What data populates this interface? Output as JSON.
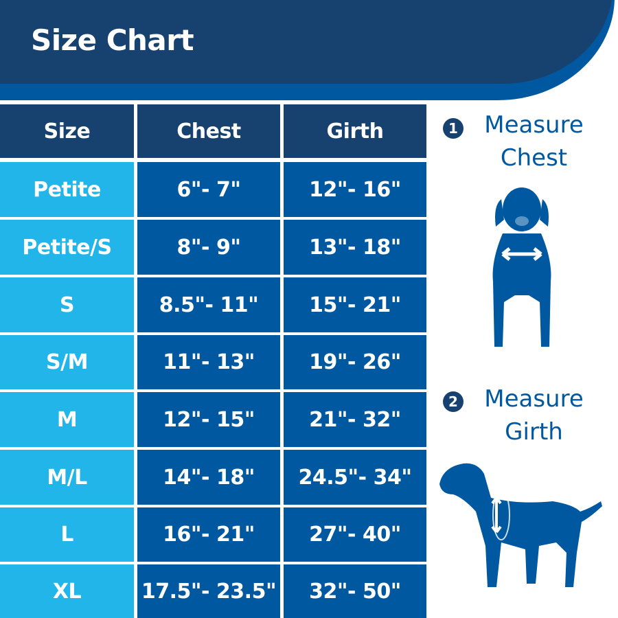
{
  "title": "Size Chart",
  "table": {
    "headers": [
      "Size",
      "Chest",
      "Girth"
    ],
    "rows": [
      {
        "size": "Petite",
        "chest": "6\"- 7\"",
        "girth": "12\"- 16\""
      },
      {
        "size": "Petite/S",
        "chest": "8\"- 9\"",
        "girth": "13\"- 18\""
      },
      {
        "size": "S",
        "chest": "8.5\"- 11\"",
        "girth": "15\"- 21\""
      },
      {
        "size": "S/M",
        "chest": "11\"- 13\"",
        "girth": "19\"- 26\""
      },
      {
        "size": "M",
        "chest": "12\"- 15\"",
        "girth": "21\"- 32\""
      },
      {
        "size": "M/L",
        "chest": "14\"- 18\"",
        "girth": "24.5\"- 34\""
      },
      {
        "size": "L",
        "chest": "16\"- 21\"",
        "girth": "27\"- 40\""
      },
      {
        "size": "XL",
        "chest": "17.5\"- 23.5\"",
        "girth": "32\"- 50\""
      }
    ]
  },
  "steps": [
    {
      "number": "1",
      "line1": "Measure",
      "line2": "Chest",
      "icon": "dog-front-chest-icon"
    },
    {
      "number": "2",
      "line1": "Measure",
      "line2": "Girth",
      "icon": "dog-side-girth-icon"
    }
  ],
  "colors": {
    "header": "#17426f",
    "accent": "#0059a0",
    "size_cell": "#22b5ea"
  }
}
